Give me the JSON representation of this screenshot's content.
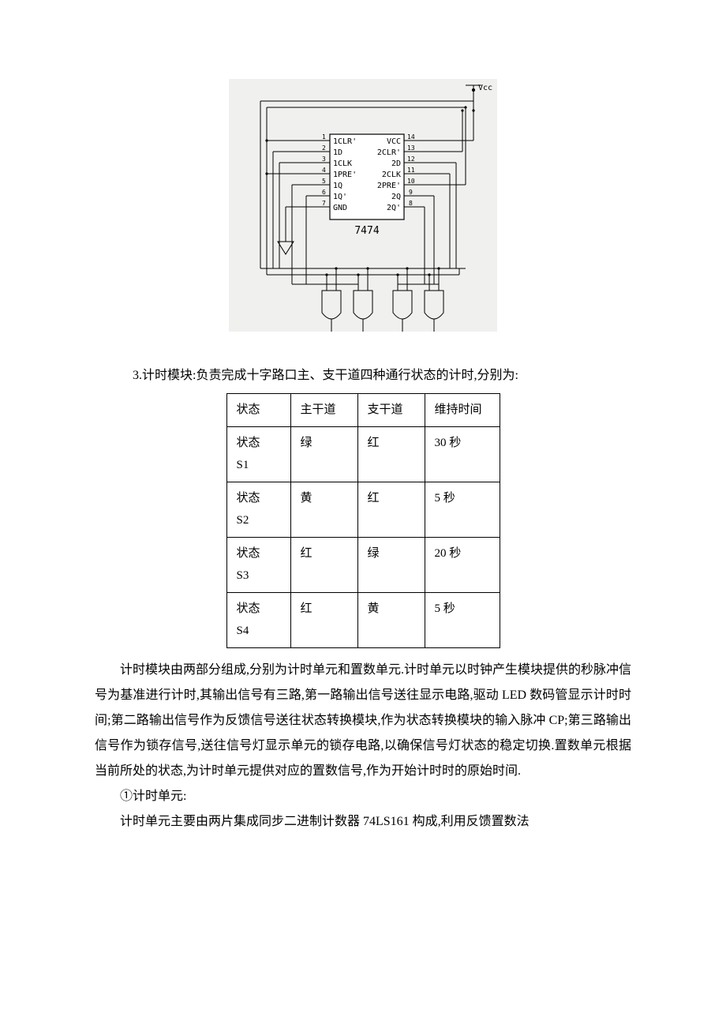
{
  "diagram": {
    "bg": "#f0f0ee",
    "stroke": "#000000",
    "vcc_label": "Vcc",
    "chip_label": "7474",
    "left_pins": [
      "1CLR'",
      "1D",
      "1CLK",
      "1PRE'",
      "1Q",
      "1Q'",
      "GND"
    ],
    "right_pins": [
      "VCC",
      "2CLR'",
      "2D",
      "2CLK",
      "2PRE'",
      "2Q",
      "2Q'"
    ],
    "left_nums": [
      "1",
      "2",
      "3",
      "4",
      "5",
      "6",
      "7"
    ],
    "right_nums": [
      "14",
      "13",
      "12",
      "11",
      "10",
      "9",
      "8"
    ]
  },
  "heading3": "3.计时模块:负责完成十字路口主、支干道四种通行状态的计时,分别为:",
  "table": {
    "columns": [
      "状态",
      "主干道",
      "支干道",
      "维持时间"
    ],
    "rows": [
      [
        "状态\nS1",
        "绿",
        "红",
        "30 秒"
      ],
      [
        "状态\nS2",
        "黄",
        "红",
        "5 秒"
      ],
      [
        "状态\nS3",
        "红",
        "绿",
        "20 秒"
      ],
      [
        "状态\nS4",
        "红",
        "黄",
        "5 秒"
      ]
    ]
  },
  "body1": "计时模块由两部分组成,分别为计时单元和置数单元.计时单元以时钟产生模块提供的秒脉冲信号为基准进行计时,其输出信号有三路,第一路输出信号送往显示电路,驱动 LED 数码管显示计时时间;第二路输出信号作为反馈信号送往状态转换模块,作为状态转换模块的输入脉冲 CP;第三路输出信号作为锁存信号,送往信号灯显示单元的锁存电路,以确保信号灯状态的稳定切换.置数单元根据当前所处的状态,为计时单元提供对应的置数信号,作为开始计时时的原始时间.",
  "sub1_title": "①计时单元:",
  "sub1_body": "计时单元主要由两片集成同步二进制计数器 74LS161 构成,利用反馈置数法"
}
